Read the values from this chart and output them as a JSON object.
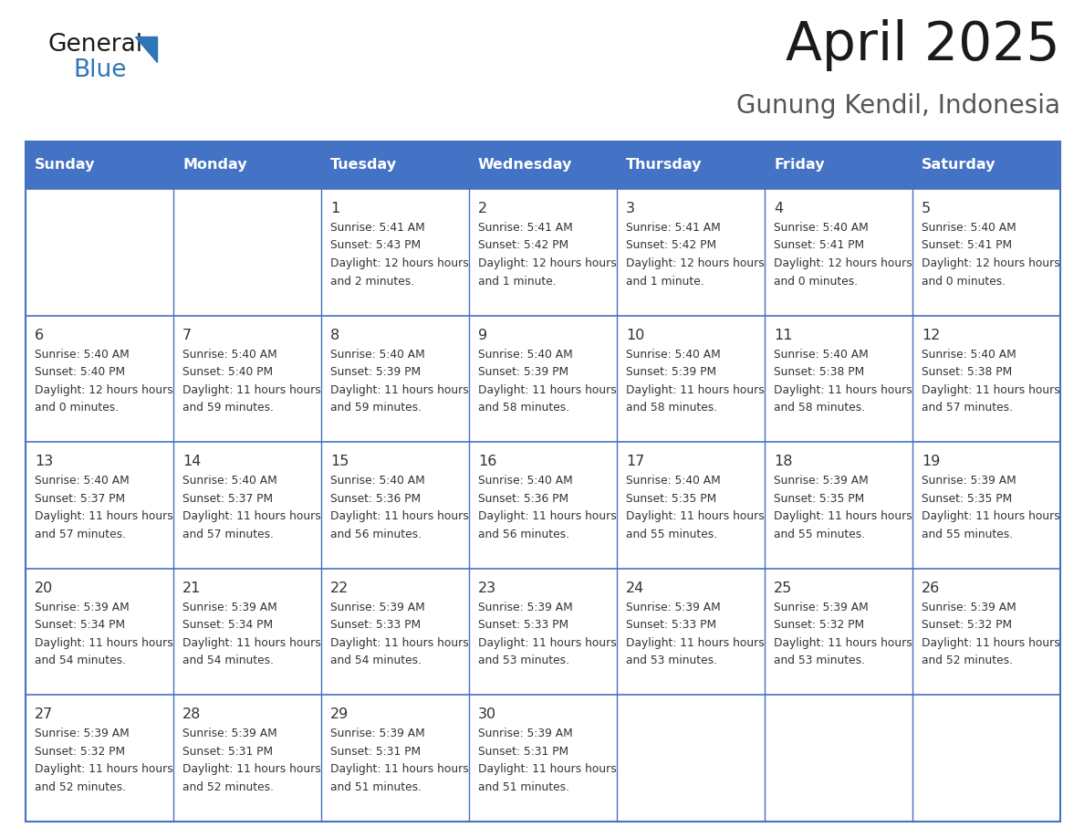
{
  "title": "April 2025",
  "subtitle": "Gunung Kendil, Indonesia",
  "days_of_week": [
    "Sunday",
    "Monday",
    "Tuesday",
    "Wednesday",
    "Thursday",
    "Friday",
    "Saturday"
  ],
  "header_bg_color": "#4472C4",
  "header_text_color": "#FFFFFF",
  "border_color": "#4472C4",
  "cell_bg_color": "#FFFFFF",
  "text_color": "#333333",
  "title_color": "#1a1a1a",
  "subtitle_color": "#555555",
  "logo_general_color": "#1a1a1a",
  "logo_blue_color": "#2E75B6",
  "calendar": [
    [
      {
        "day": "",
        "sunrise": "",
        "sunset": "",
        "daylight": ""
      },
      {
        "day": "",
        "sunrise": "",
        "sunset": "",
        "daylight": ""
      },
      {
        "day": "1",
        "sunrise": "5:41 AM",
        "sunset": "5:43 PM",
        "daylight": "12 hours and 2 minutes."
      },
      {
        "day": "2",
        "sunrise": "5:41 AM",
        "sunset": "5:42 PM",
        "daylight": "12 hours and 1 minute."
      },
      {
        "day": "3",
        "sunrise": "5:41 AM",
        "sunset": "5:42 PM",
        "daylight": "12 hours and 1 minute."
      },
      {
        "day": "4",
        "sunrise": "5:40 AM",
        "sunset": "5:41 PM",
        "daylight": "12 hours and 0 minutes."
      },
      {
        "day": "5",
        "sunrise": "5:40 AM",
        "sunset": "5:41 PM",
        "daylight": "12 hours and 0 minutes."
      }
    ],
    [
      {
        "day": "6",
        "sunrise": "5:40 AM",
        "sunset": "5:40 PM",
        "daylight": "12 hours and 0 minutes."
      },
      {
        "day": "7",
        "sunrise": "5:40 AM",
        "sunset": "5:40 PM",
        "daylight": "11 hours and 59 minutes."
      },
      {
        "day": "8",
        "sunrise": "5:40 AM",
        "sunset": "5:39 PM",
        "daylight": "11 hours and 59 minutes."
      },
      {
        "day": "9",
        "sunrise": "5:40 AM",
        "sunset": "5:39 PM",
        "daylight": "11 hours and 58 minutes."
      },
      {
        "day": "10",
        "sunrise": "5:40 AM",
        "sunset": "5:39 PM",
        "daylight": "11 hours and 58 minutes."
      },
      {
        "day": "11",
        "sunrise": "5:40 AM",
        "sunset": "5:38 PM",
        "daylight": "11 hours and 58 minutes."
      },
      {
        "day": "12",
        "sunrise": "5:40 AM",
        "sunset": "5:38 PM",
        "daylight": "11 hours and 57 minutes."
      }
    ],
    [
      {
        "day": "13",
        "sunrise": "5:40 AM",
        "sunset": "5:37 PM",
        "daylight": "11 hours and 57 minutes."
      },
      {
        "day": "14",
        "sunrise": "5:40 AM",
        "sunset": "5:37 PM",
        "daylight": "11 hours and 57 minutes."
      },
      {
        "day": "15",
        "sunrise": "5:40 AM",
        "sunset": "5:36 PM",
        "daylight": "11 hours and 56 minutes."
      },
      {
        "day": "16",
        "sunrise": "5:40 AM",
        "sunset": "5:36 PM",
        "daylight": "11 hours and 56 minutes."
      },
      {
        "day": "17",
        "sunrise": "5:40 AM",
        "sunset": "5:35 PM",
        "daylight": "11 hours and 55 minutes."
      },
      {
        "day": "18",
        "sunrise": "5:39 AM",
        "sunset": "5:35 PM",
        "daylight": "11 hours and 55 minutes."
      },
      {
        "day": "19",
        "sunrise": "5:39 AM",
        "sunset": "5:35 PM",
        "daylight": "11 hours and 55 minutes."
      }
    ],
    [
      {
        "day": "20",
        "sunrise": "5:39 AM",
        "sunset": "5:34 PM",
        "daylight": "11 hours and 54 minutes."
      },
      {
        "day": "21",
        "sunrise": "5:39 AM",
        "sunset": "5:34 PM",
        "daylight": "11 hours and 54 minutes."
      },
      {
        "day": "22",
        "sunrise": "5:39 AM",
        "sunset": "5:33 PM",
        "daylight": "11 hours and 54 minutes."
      },
      {
        "day": "23",
        "sunrise": "5:39 AM",
        "sunset": "5:33 PM",
        "daylight": "11 hours and 53 minutes."
      },
      {
        "day": "24",
        "sunrise": "5:39 AM",
        "sunset": "5:33 PM",
        "daylight": "11 hours and 53 minutes."
      },
      {
        "day": "25",
        "sunrise": "5:39 AM",
        "sunset": "5:32 PM",
        "daylight": "11 hours and 53 minutes."
      },
      {
        "day": "26",
        "sunrise": "5:39 AM",
        "sunset": "5:32 PM",
        "daylight": "11 hours and 52 minutes."
      }
    ],
    [
      {
        "day": "27",
        "sunrise": "5:39 AM",
        "sunset": "5:32 PM",
        "daylight": "11 hours and 52 minutes."
      },
      {
        "day": "28",
        "sunrise": "5:39 AM",
        "sunset": "5:31 PM",
        "daylight": "11 hours and 52 minutes."
      },
      {
        "day": "29",
        "sunrise": "5:39 AM",
        "sunset": "5:31 PM",
        "daylight": "11 hours and 51 minutes."
      },
      {
        "day": "30",
        "sunrise": "5:39 AM",
        "sunset": "5:31 PM",
        "daylight": "11 hours and 51 minutes."
      },
      {
        "day": "",
        "sunrise": "",
        "sunset": "",
        "daylight": ""
      },
      {
        "day": "",
        "sunrise": "",
        "sunset": "",
        "daylight": ""
      },
      {
        "day": "",
        "sunrise": "",
        "sunset": "",
        "daylight": ""
      }
    ]
  ]
}
